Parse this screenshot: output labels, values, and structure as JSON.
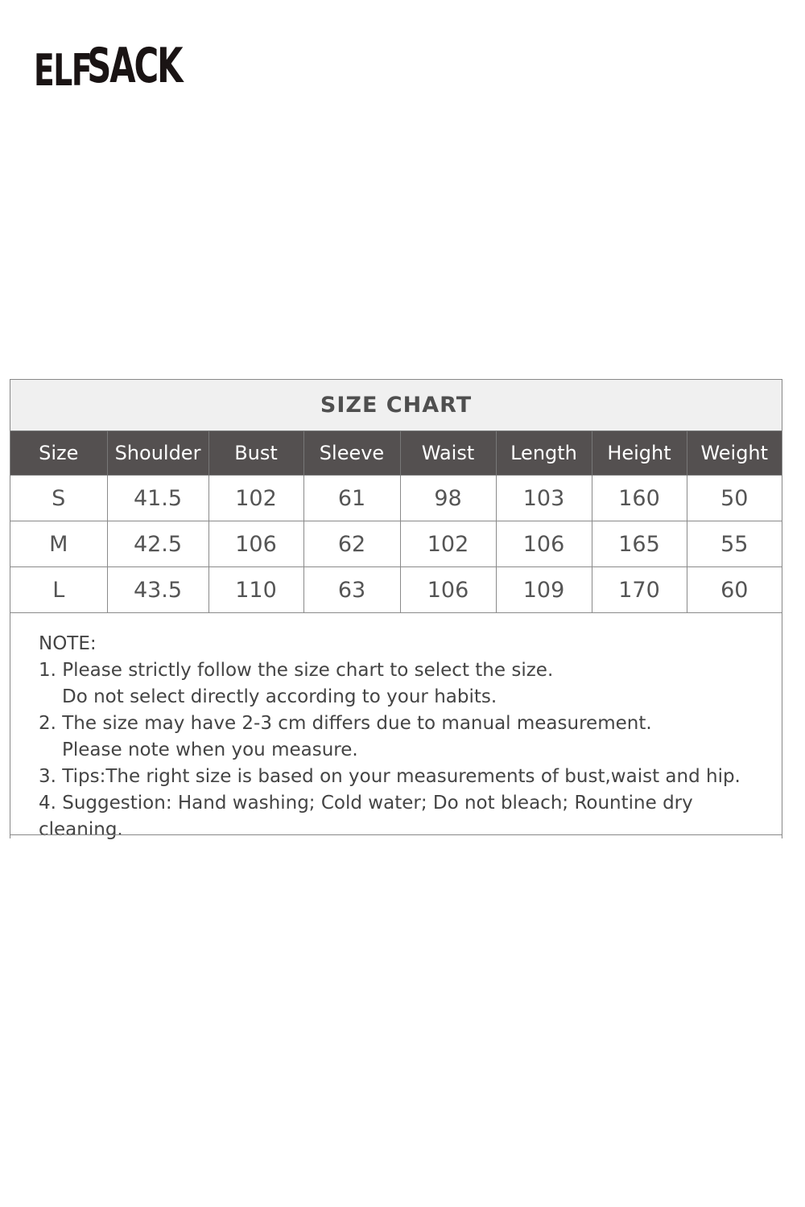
{
  "brand": {
    "logo_text": "ELFSACK"
  },
  "size_chart": {
    "title": "SIZE CHART",
    "headers": [
      "Size",
      "Shoulder",
      "Bust",
      "Sleeve",
      "Waist",
      "Length",
      "Height",
      "Weight"
    ],
    "rows": [
      [
        "S",
        "41.5",
        "102",
        "61",
        "98",
        "103",
        "160",
        "50"
      ],
      [
        "M",
        "42.5",
        "106",
        "62",
        "102",
        "106",
        "165",
        "55"
      ],
      [
        "L",
        "43.5",
        "110",
        "63",
        "106",
        "109",
        "170",
        "60"
      ]
    ],
    "header_color": "#545050",
    "title_band_color": "#f0f0f0"
  },
  "notes": {
    "heading": "NOTE:",
    "lines": [
      "1. Please strictly follow the size chart to select the size.",
      "Do not select directly according to your habits.",
      "2. The size may have 2-3 cm differs due to manual measurement.",
      "Please note when you measure.",
      "3. Tips:The right size is based on your measurements of bust,waist and hip.",
      "4. Suggestion: Hand washing; Cold water; Do not bleach; Rountine dry cleaning."
    ]
  }
}
